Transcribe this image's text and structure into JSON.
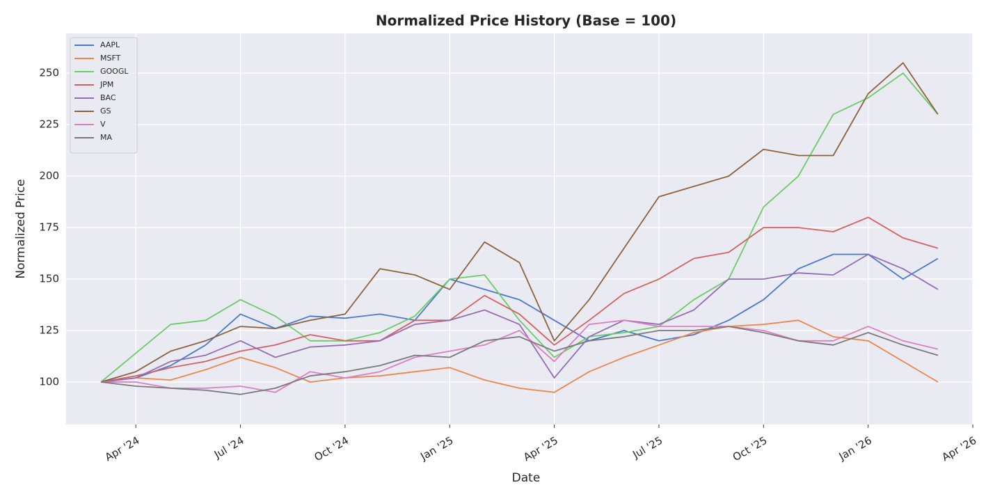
{
  "chart_data": {
    "type": "line",
    "title": "Normalized Price History (Base = 100)",
    "x_label": "Date",
    "y_label": "Normalized Price",
    "x": [
      "2024-03",
      "2024-04",
      "2024-05",
      "2024-06",
      "2024-07",
      "2024-08",
      "2024-09",
      "2024-10",
      "2024-11",
      "2024-12",
      "2025-01",
      "2025-02",
      "2025-03",
      "2025-04",
      "2025-05",
      "2025-06",
      "2025-07",
      "2025-08",
      "2025-09",
      "2025-10",
      "2025-11",
      "2025-12",
      "2026-01",
      "2026-02",
      "2026-03"
    ],
    "series": [
      {
        "name": "AAPL",
        "color": "#4878d0",
        "values": [
          100,
          102,
          108,
          118,
          133,
          126,
          132,
          131,
          133,
          130,
          150,
          145,
          140,
          130,
          120,
          125,
          120,
          123,
          130,
          140,
          155,
          162,
          162,
          150,
          160
        ]
      },
      {
        "name": "MSFT",
        "color": "#ee854a",
        "values": [
          100,
          102,
          101,
          106,
          112,
          107,
          100,
          102,
          103,
          105,
          107,
          101,
          97,
          95,
          105,
          112,
          118,
          124,
          127,
          128,
          130,
          122,
          120,
          110,
          100
        ]
      },
      {
        "name": "GOOGL",
        "color": "#6acc64",
        "values": [
          100,
          114,
          128,
          130,
          140,
          132,
          120,
          120,
          124,
          132,
          150,
          152,
          130,
          112,
          122,
          124,
          127,
          140,
          150,
          185,
          200,
          230,
          238,
          250,
          230
        ]
      },
      {
        "name": "JPM",
        "color": "#d65f5f",
        "values": [
          100,
          103,
          107,
          110,
          115,
          118,
          123,
          120,
          120,
          130,
          130,
          142,
          133,
          118,
          130,
          143,
          150,
          160,
          163,
          175,
          175,
          173,
          180,
          170,
          165
        ]
      },
      {
        "name": "BAC",
        "color": "#956cb4",
        "values": [
          100,
          102,
          110,
          113,
          120,
          112,
          117,
          118,
          120,
          128,
          130,
          135,
          128,
          102,
          122,
          130,
          128,
          135,
          150,
          150,
          153,
          152,
          162,
          155,
          145
        ]
      },
      {
        "name": "GS",
        "color": "#8c613c",
        "values": [
          100,
          105,
          115,
          120,
          127,
          126,
          130,
          133,
          155,
          152,
          145,
          168,
          158,
          120,
          140,
          165,
          190,
          195,
          200,
          213,
          210,
          210,
          240,
          255,
          230
        ]
      },
      {
        "name": "V",
        "color": "#dc7ec0",
        "values": [
          100,
          100,
          97,
          97,
          98,
          95,
          105,
          102,
          105,
          112,
          115,
          118,
          125,
          110,
          128,
          130,
          127,
          127,
          127,
          125,
          120,
          120,
          127,
          120,
          116
        ]
      },
      {
        "name": "MA",
        "color": "#797979",
        "values": [
          100,
          98,
          97,
          96,
          94,
          97,
          103,
          105,
          108,
          113,
          112,
          120,
          122,
          115,
          120,
          122,
          125,
          125,
          127,
          124,
          120,
          118,
          124,
          118,
          113
        ]
      }
    ],
    "xlim": [
      "2024-02",
      "2026-04"
    ],
    "xticks": [
      {
        "value": "2024-04",
        "label": "Apr '24"
      },
      {
        "value": "2024-07",
        "label": "Jul '24"
      },
      {
        "value": "2024-10",
        "label": "Oct '24"
      },
      {
        "value": "2025-01",
        "label": "Jan '25"
      },
      {
        "value": "2025-04",
        "label": "Apr '25"
      },
      {
        "value": "2025-07",
        "label": "Jul '25"
      },
      {
        "value": "2025-10",
        "label": "Oct '25"
      },
      {
        "value": "2026-01",
        "label": "Jan '26"
      },
      {
        "value": "2026-04",
        "label": "Apr '26"
      }
    ],
    "ylim": [
      79.4,
      269.3
    ],
    "yticks": [
      100,
      125,
      150,
      175,
      200,
      225,
      250
    ],
    "grid": true,
    "legend": "upper left"
  }
}
